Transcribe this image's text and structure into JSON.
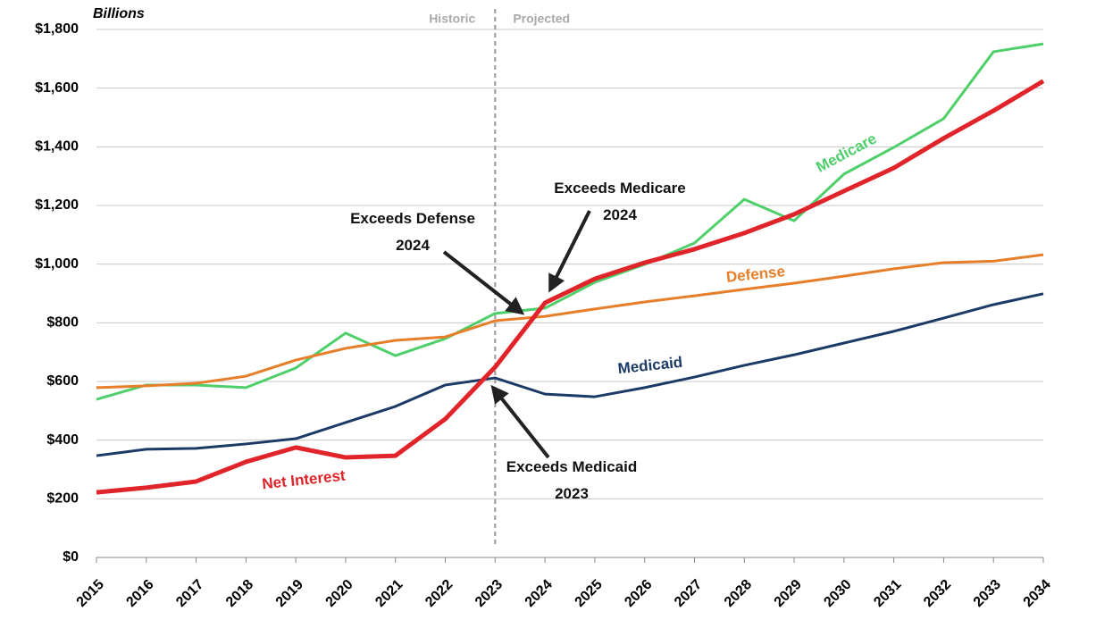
{
  "chart_data": {
    "type": "line",
    "ylabel": "Billions",
    "period_labels": [
      "Historic",
      "Projected"
    ],
    "categories": [
      "2015",
      "2016",
      "2017",
      "2018",
      "2019",
      "2020",
      "2021",
      "2022",
      "2023",
      "2024",
      "2025",
      "2026",
      "2027",
      "2028",
      "2029",
      "2030",
      "2031",
      "2032",
      "2033",
      "2034"
    ],
    "series": [
      {
        "name": "Medicare",
        "color": "#4fcf6a",
        "values": [
          539,
          588,
          588,
          579,
          646,
          765,
          688,
          746,
          832,
          850,
          938,
          999,
          1072,
          1221,
          1148,
          1307,
          1398,
          1496,
          1724,
          1751
        ]
      },
      {
        "name": "Defense",
        "color": "#e67e2a",
        "values": [
          579,
          585,
          594,
          618,
          673,
          713,
          740,
          752,
          807,
          822,
          847,
          871,
          892,
          914,
          935,
          959,
          984,
          1005,
          1010,
          1032
        ]
      },
      {
        "name": "Medicaid",
        "color": "#1b3a66",
        "values": [
          347,
          369,
          372,
          387,
          405,
          460,
          515,
          588,
          612,
          557,
          548,
          579,
          615,
          655,
          691,
          731,
          771,
          816,
          862,
          899
        ]
      },
      {
        "name": "Net Interest",
        "color": "#e0242a",
        "values": [
          222,
          238,
          259,
          326,
          375,
          341,
          347,
          472,
          649,
          868,
          950,
          1005,
          1051,
          1106,
          1170,
          1249,
          1328,
          1429,
          1523,
          1624
        ]
      }
    ],
    "annotations": [
      {
        "lines": [
          "Exceeds Medicare",
          "2024"
        ]
      },
      {
        "lines": [
          "Exceeds Defense",
          "2024"
        ]
      },
      {
        "lines": [
          "Exceeds Medicaid",
          "2023"
        ]
      }
    ],
    "ylim": [
      0,
      1800
    ],
    "yticks": [
      {
        "value": 0,
        "label": "$0"
      },
      {
        "value": 200,
        "label": "$200"
      },
      {
        "value": 400,
        "label": "$400"
      },
      {
        "value": 600,
        "label": "$600"
      },
      {
        "value": 800,
        "label": "$800"
      },
      {
        "value": 1000,
        "label": "$1,000"
      },
      {
        "value": 1200,
        "label": "$1,200"
      },
      {
        "value": 1400,
        "label": "$1,400"
      },
      {
        "value": 1600,
        "label": "$1,600"
      },
      {
        "value": 1800,
        "label": "$1,800"
      }
    ],
    "grid": true
  }
}
